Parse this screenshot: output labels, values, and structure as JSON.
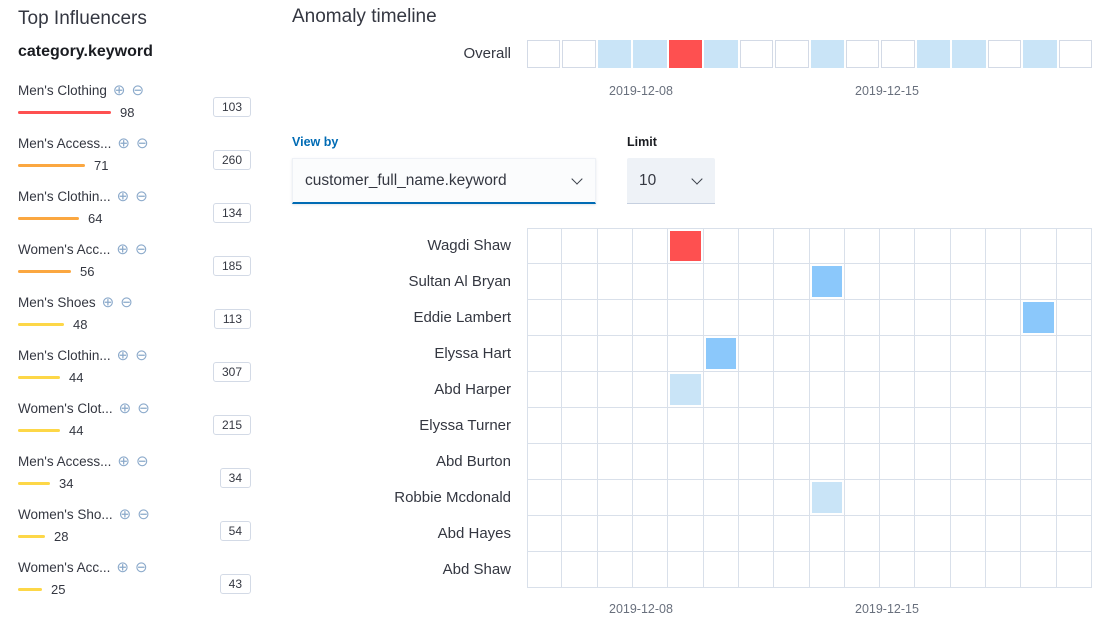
{
  "severity_colors": {
    "critical": "#fe5050",
    "major": "#fba740",
    "minor": "#fdd747",
    "warning": "#8bc8fb",
    "low": "#c9e4f7"
  },
  "icons": {
    "add_filter": "⊕",
    "remove_filter": "⊖",
    "chevron_down": "chevron-down"
  },
  "top_influencers": {
    "title": "Top Influencers",
    "field": "category.keyword",
    "items": [
      {
        "name": "Men's Clothing",
        "score": 98,
        "count": "103",
        "severity": "critical"
      },
      {
        "name": "Men's Access...",
        "score": 71,
        "count": "260",
        "severity": "major"
      },
      {
        "name": "Men's Clothin...",
        "score": 64,
        "count": "134",
        "severity": "major"
      },
      {
        "name": "Women's Acc...",
        "score": 56,
        "count": "185",
        "severity": "major"
      },
      {
        "name": "Men's Shoes",
        "score": 48,
        "count": "113",
        "severity": "minor"
      },
      {
        "name": "Men's Clothin...",
        "score": 44,
        "count": "307",
        "severity": "minor"
      },
      {
        "name": "Women's Clot...",
        "score": 44,
        "count": "215",
        "severity": "minor"
      },
      {
        "name": "Men's Access...",
        "score": 34,
        "count": "34",
        "severity": "minor"
      },
      {
        "name": "Women's Sho...",
        "score": 28,
        "count": "54",
        "severity": "minor"
      },
      {
        "name": "Women's Acc...",
        "score": 25,
        "count": "43",
        "severity": "minor"
      }
    ]
  },
  "timeline": {
    "title": "Anomaly timeline",
    "overall_label": "Overall",
    "columns": 16,
    "axis_labels": [
      "2019-12-08",
      "2019-12-15"
    ],
    "view_by": {
      "label": "View by",
      "value": "customer_full_name.keyword"
    },
    "limit": {
      "label": "Limit",
      "value": "10"
    },
    "overall_cells": [
      {
        "col": 2,
        "severity": "low"
      },
      {
        "col": 3,
        "severity": "low"
      },
      {
        "col": 4,
        "severity": "critical"
      },
      {
        "col": 5,
        "severity": "low"
      },
      {
        "col": 8,
        "severity": "low"
      },
      {
        "col": 11,
        "severity": "low"
      },
      {
        "col": 12,
        "severity": "low"
      },
      {
        "col": 14,
        "severity": "low"
      }
    ],
    "lanes": [
      {
        "name": "Wagdi Shaw",
        "cells": [
          {
            "col": 4,
            "severity": "critical"
          }
        ]
      },
      {
        "name": "Sultan Al Bryan",
        "cells": [
          {
            "col": 8,
            "severity": "warning"
          }
        ]
      },
      {
        "name": "Eddie Lambert",
        "cells": [
          {
            "col": 14,
            "severity": "warning"
          }
        ]
      },
      {
        "name": "Elyssa Hart",
        "cells": [
          {
            "col": 5,
            "severity": "warning"
          }
        ]
      },
      {
        "name": "Abd Harper",
        "cells": [
          {
            "col": 4,
            "severity": "low"
          }
        ]
      },
      {
        "name": "Elyssa Turner",
        "cells": []
      },
      {
        "name": "Abd Burton",
        "cells": []
      },
      {
        "name": "Robbie Mcdonald",
        "cells": [
          {
            "col": 8,
            "severity": "low"
          }
        ]
      },
      {
        "name": "Abd Hayes",
        "cells": []
      },
      {
        "name": "Abd Shaw",
        "cells": []
      }
    ]
  }
}
